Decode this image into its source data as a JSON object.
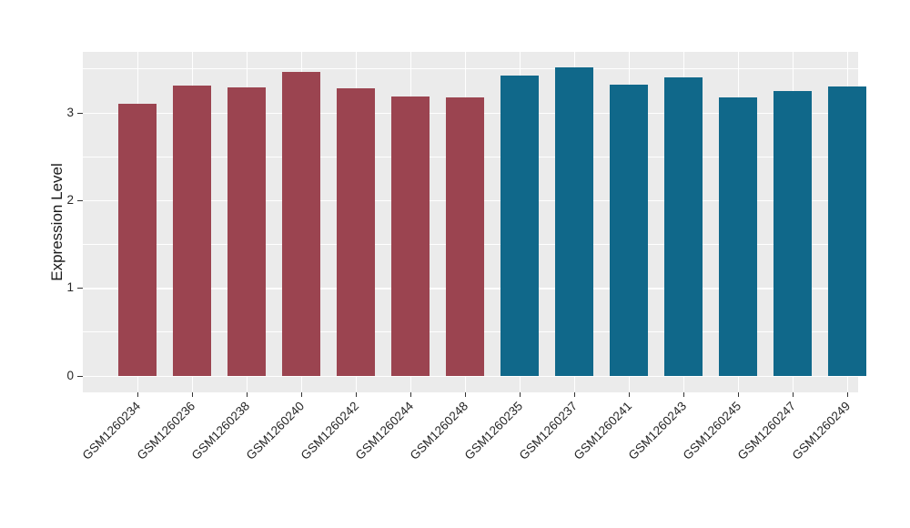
{
  "chart_data": {
    "type": "bar",
    "title": "",
    "xlabel": "",
    "ylabel": "Expression Level",
    "categories": [
      "GSM1260234",
      "GSM1260236",
      "GSM1260238",
      "GSM1260240",
      "GSM1260242",
      "GSM1260244",
      "GSM1260248",
      "GSM1260235",
      "GSM1260237",
      "GSM1260241",
      "GSM1260243",
      "GSM1260245",
      "GSM1260247",
      "GSM1260249"
    ],
    "values": [
      3.1,
      3.31,
      3.29,
      3.46,
      3.28,
      3.18,
      3.17,
      3.42,
      3.51,
      3.32,
      3.4,
      3.17,
      3.24,
      3.3
    ],
    "groups": [
      "group1",
      "group1",
      "group1",
      "group1",
      "group1",
      "group1",
      "group1",
      "group2",
      "group2",
      "group2",
      "group2",
      "group2",
      "group2",
      "group2"
    ],
    "group_colors": {
      "group1": "#9B4450",
      "group2": "#10688A"
    },
    "y_ticks": [
      0,
      1,
      2,
      3
    ],
    "y_minor_ticks": [
      0.5,
      1.5,
      2.5,
      3.5
    ],
    "ylim": [
      -0.19,
      3.69
    ],
    "bar_width_ratio": 0.7,
    "grid": true,
    "legend_position": "none",
    "panel_background": "#EBEBEB",
    "grid_color": "#FFFFFF",
    "tick_color": "#333333",
    "text_color": "#262626"
  }
}
